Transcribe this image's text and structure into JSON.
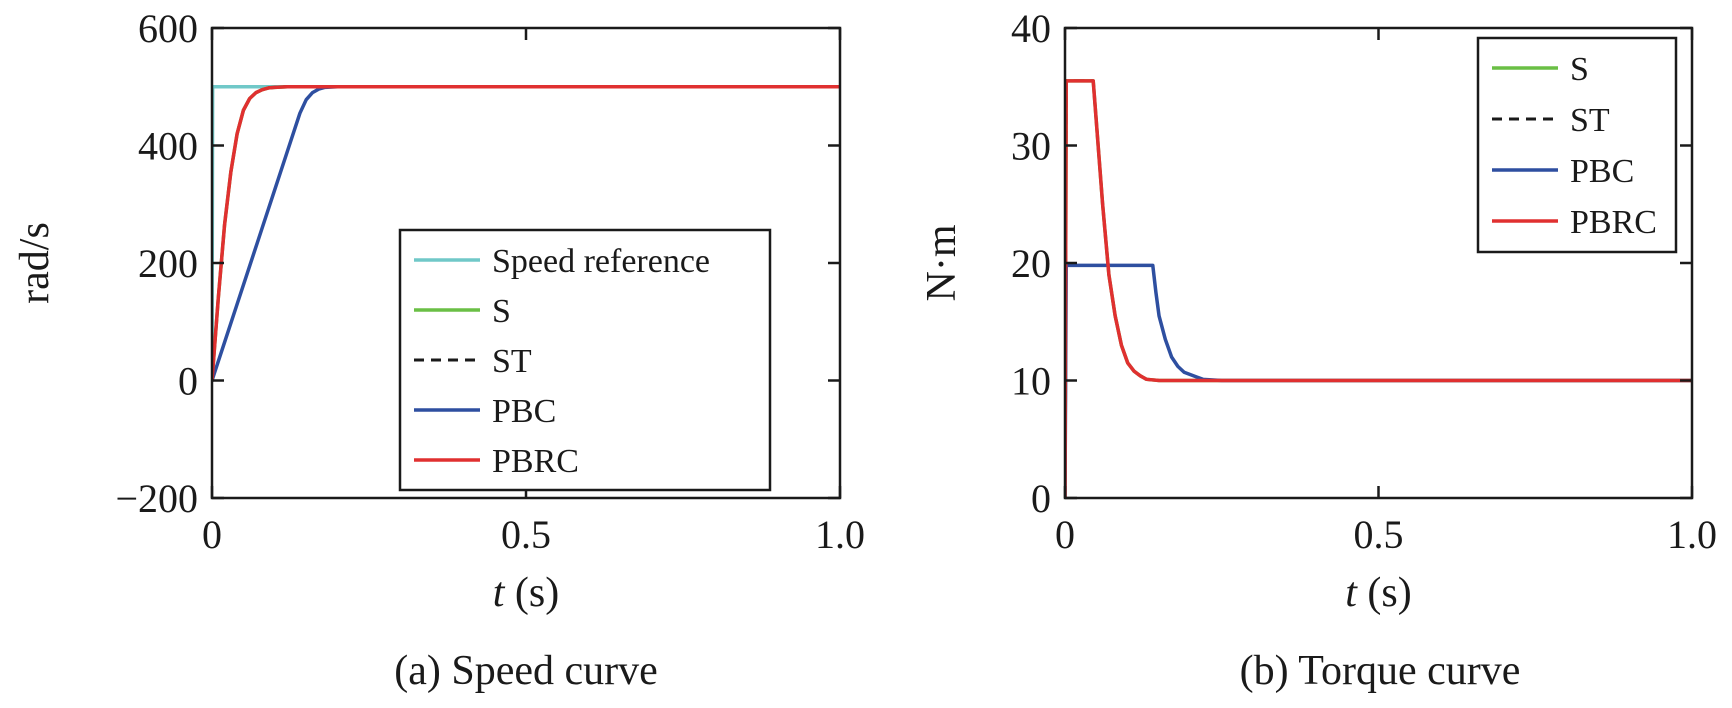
{
  "chart_data": [
    {
      "type": "line",
      "caption": "(a) Speed curve",
      "xlabel": "t",
      "xlabel_unit": "(s)",
      "ylabel": "rad/s",
      "xlim": [
        0,
        1.0
      ],
      "ylim": [
        -200,
        600
      ],
      "xticks": [
        0,
        0.5,
        1.0
      ],
      "xtick_labels": [
        "0",
        "0.5",
        "1.0"
      ],
      "yticks": [
        -200,
        0,
        200,
        400,
        600
      ],
      "ytick_labels": [
        "−200",
        "0",
        "200",
        "400",
        "600"
      ],
      "grid": false,
      "legend_position": "center-right",
      "series": [
        {
          "name": "Speed reference",
          "color": "#70c8c8",
          "dash": "solid",
          "x": [
            0,
            0.001,
            1.0
          ],
          "y": [
            0,
            500,
            500
          ]
        },
        {
          "name": "S",
          "color": "#6abf45",
          "dash": "solid",
          "x": [
            0,
            0.01,
            0.02,
            0.03,
            0.04,
            0.05,
            0.06,
            0.07,
            0.08,
            0.09,
            0.1,
            0.12,
            0.15,
            0.2,
            1.0
          ],
          "y": [
            0,
            140,
            265,
            355,
            420,
            460,
            480,
            490,
            495,
            498,
            499,
            500,
            500,
            500,
            500
          ]
        },
        {
          "name": "ST",
          "color": "#1a1a1a",
          "dash": "dashed",
          "x": [
            0,
            0.01,
            0.02,
            0.03,
            0.04,
            0.05,
            0.06,
            0.07,
            0.08,
            0.09,
            0.1,
            0.12,
            0.15,
            0.2,
            1.0
          ],
          "y": [
            0,
            140,
            265,
            355,
            420,
            460,
            480,
            490,
            495,
            498,
            499,
            500,
            500,
            500,
            500
          ]
        },
        {
          "name": "PBC",
          "color": "#2e4fa0",
          "dash": "solid",
          "x": [
            0,
            0.02,
            0.04,
            0.06,
            0.08,
            0.1,
            0.12,
            0.14,
            0.15,
            0.16,
            0.17,
            0.18,
            0.2,
            0.25,
            1.0
          ],
          "y": [
            0,
            65,
            130,
            195,
            260,
            325,
            390,
            455,
            478,
            490,
            496,
            499,
            500,
            500,
            500
          ]
        },
        {
          "name": "PBRC",
          "color": "#e03030",
          "dash": "solid",
          "x": [
            0,
            0.01,
            0.02,
            0.03,
            0.04,
            0.05,
            0.06,
            0.07,
            0.08,
            0.09,
            0.1,
            0.12,
            0.15,
            0.2,
            1.0
          ],
          "y": [
            0,
            140,
            265,
            355,
            420,
            460,
            480,
            490,
            495,
            498,
            499,
            500,
            500,
            500,
            500
          ]
        }
      ]
    },
    {
      "type": "line",
      "caption": "(b) Torque curve",
      "xlabel": "t",
      "xlabel_unit": "(s)",
      "ylabel": "N·m",
      "xlim": [
        0,
        1.0
      ],
      "ylim": [
        0,
        40
      ],
      "xticks": [
        0,
        0.5,
        1.0
      ],
      "xtick_labels": [
        "0",
        "0.5",
        "1.0"
      ],
      "yticks": [
        0,
        10,
        20,
        30,
        40
      ],
      "ytick_labels": [
        "0",
        "10",
        "20",
        "30",
        "40"
      ],
      "grid": false,
      "legend_position": "top-right",
      "series": [
        {
          "name": "S",
          "color": "#6abf45",
          "dash": "solid",
          "x": [
            0,
            0.002,
            0.045,
            0.05,
            0.06,
            0.07,
            0.08,
            0.09,
            0.1,
            0.11,
            0.12,
            0.13,
            0.15,
            0.2,
            1.0
          ],
          "y": [
            0,
            35.5,
            35.5,
            32,
            25,
            19,
            15.5,
            13,
            11.5,
            10.8,
            10.4,
            10.1,
            10,
            10,
            10
          ]
        },
        {
          "name": "ST",
          "color": "#1a1a1a",
          "dash": "dashed",
          "x": [
            0,
            0.002,
            0.045,
            0.05,
            0.06,
            0.07,
            0.08,
            0.09,
            0.1,
            0.11,
            0.12,
            0.13,
            0.15,
            0.2,
            1.0
          ],
          "y": [
            0,
            35.5,
            35.5,
            32,
            25,
            19,
            15.5,
            13,
            11.5,
            10.8,
            10.4,
            10.1,
            10,
            10,
            10
          ]
        },
        {
          "name": "PBC",
          "color": "#2e4fa0",
          "dash": "solid",
          "x": [
            0,
            0.002,
            0.14,
            0.145,
            0.15,
            0.16,
            0.17,
            0.18,
            0.19,
            0.2,
            0.21,
            0.22,
            0.25,
            1.0
          ],
          "y": [
            0,
            19.8,
            19.8,
            17.5,
            15.5,
            13.5,
            12,
            11.2,
            10.7,
            10.5,
            10.3,
            10.1,
            10,
            10
          ]
        },
        {
          "name": "PBRC",
          "color": "#e03030",
          "dash": "solid",
          "x": [
            0,
            0.002,
            0.045,
            0.05,
            0.06,
            0.07,
            0.08,
            0.09,
            0.1,
            0.11,
            0.12,
            0.13,
            0.15,
            0.2,
            1.0
          ],
          "y": [
            0,
            35.5,
            35.5,
            32,
            25,
            19,
            15.5,
            13,
            11.5,
            10.8,
            10.4,
            10.1,
            10,
            10,
            10
          ]
        }
      ]
    }
  ]
}
